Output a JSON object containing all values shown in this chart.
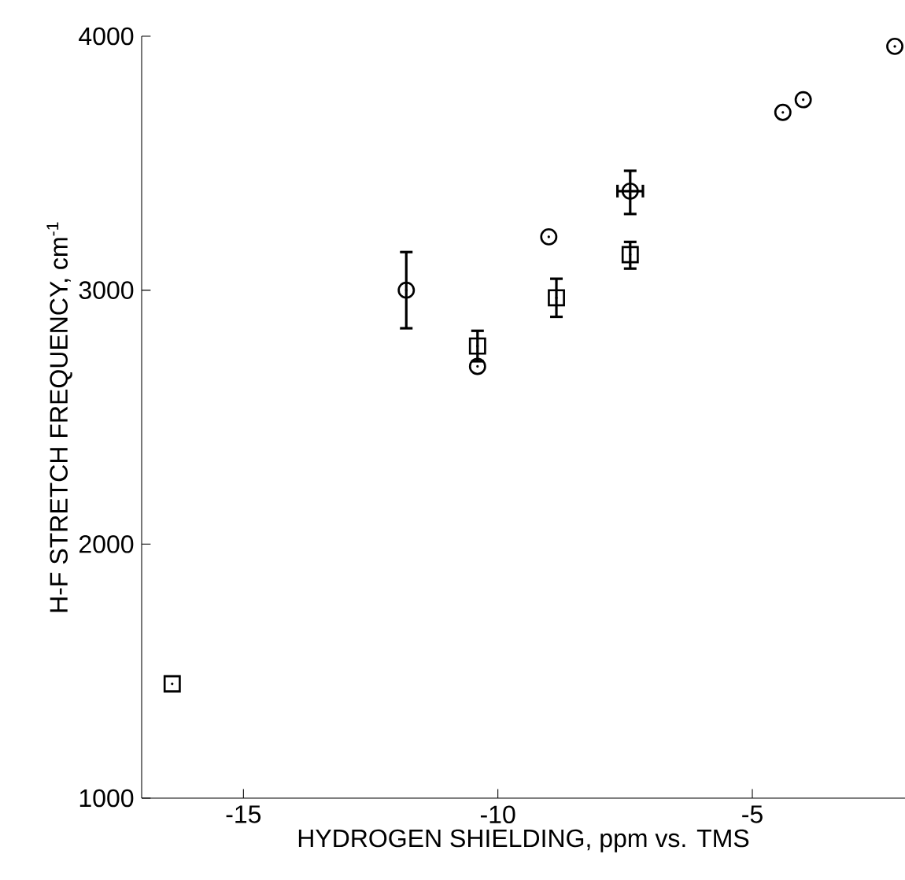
{
  "chart_data": {
    "type": "scatter",
    "xlabel": "HYDROGEN   SHIELDING,   ppm   vs.  TMS",
    "ylabel": "H-F   STRETCH   FREQUENCY,   cm$^{-1}$",
    "xlim": [
      -17,
      -2
    ],
    "xticks": [
      -15,
      -10,
      -5
    ],
    "ylim": [
      1000,
      4000
    ],
    "yticks": [
      1000,
      2000,
      3000,
      4000
    ],
    "series": [
      {
        "color": "#000000",
        "marker": "circle",
        "x": [
          -11.8,
          -10.4,
          -9.0,
          -7.4,
          -4.4,
          -4.0,
          -2.2
        ],
        "values": [
          3000,
          2700,
          3210,
          3390,
          3700,
          3750,
          3960
        ],
        "errors": [
          [
            2850,
            3150
          ],
          null,
          null,
          [
            3300,
            3470
          ],
          null,
          null,
          null
        ],
        "xerrors": [
          null,
          null,
          null,
          0.25,
          null,
          null,
          null
        ]
      },
      {
        "color": "#000000",
        "marker": "square",
        "x": [
          -16.4,
          -10.4,
          -8.85,
          -7.4
        ],
        "values": [
          1450,
          2780,
          2970,
          3140
        ],
        "errors": [
          null,
          60,
          [
            2895,
            3045
          ],
          [
            3085,
            3190
          ]
        ]
      }
    ]
  }
}
